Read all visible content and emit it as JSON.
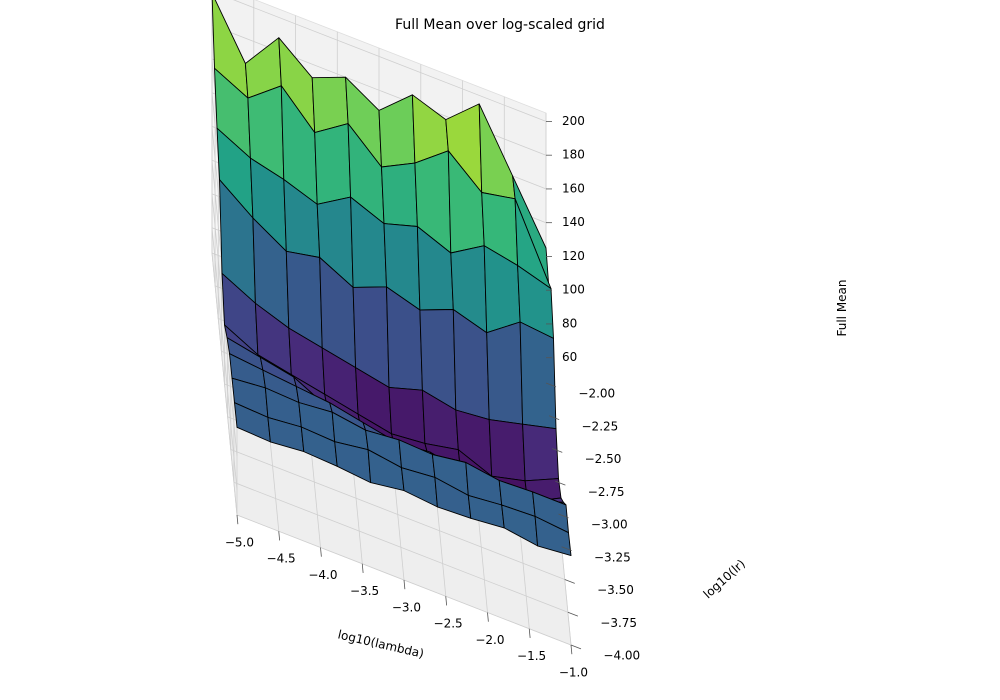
{
  "chart_data": {
    "type": "surface3d",
    "title": "Full Mean over log-scaled grid",
    "xlabel": "log10(lambda)",
    "ylabel": "log10(lr)",
    "zlabel": "Full Mean",
    "xlim": [
      -5.0,
      -1.0
    ],
    "ylim": [
      -4.0,
      -2.0
    ],
    "zlim": [
      45,
      205
    ],
    "x_ticks": [
      "−5.0",
      "−4.5",
      "−4.0",
      "−3.5",
      "−3.0",
      "−2.5",
      "−2.0",
      "−1.5",
      "−1.0"
    ],
    "y_ticks": [
      "−4.00",
      "−3.75",
      "−3.50",
      "−3.25",
      "−3.00",
      "−2.75",
      "−2.50",
      "−2.25",
      "−2.00"
    ],
    "z_ticks": [
      "60",
      "80",
      "100",
      "120",
      "140",
      "160",
      "180",
      "200"
    ],
    "colormap": "viridis",
    "grid": true,
    "x": [
      -5.0,
      -4.6,
      -4.2,
      -3.8,
      -3.4,
      -3.0,
      -2.6,
      -2.2,
      -1.8,
      -1.4,
      -1.0
    ],
    "y": [
      -4.0,
      -3.8,
      -3.6,
      -3.4,
      -3.2,
      -3.0,
      -2.8,
      -2.6,
      -2.4,
      -2.2,
      -2.0
    ],
    "z": [
      [
        97,
        96,
        98,
        97,
        95,
        98,
        96,
        97,
        99,
        96,
        98
      ],
      [
        96,
        95,
        97,
        96,
        99,
        96,
        98,
        95,
        97,
        98,
        96
      ],
      [
        95,
        97,
        96,
        98,
        95,
        97,
        96,
        99,
        96,
        97,
        97
      ],
      [
        94,
        92,
        90,
        88,
        84,
        80,
        82,
        78,
        80,
        76,
        83
      ],
      [
        88,
        84,
        80,
        70,
        66,
        64,
        66,
        62,
        65,
        60,
        70
      ],
      [
        80,
        70,
        66,
        62,
        58,
        54,
        56,
        60,
        52,
        57,
        66
      ],
      [
        95,
        85,
        78,
        74,
        70,
        66,
        72,
        68,
        70,
        75,
        80
      ],
      [
        135,
        120,
        108,
        112,
        102,
        110,
        104,
        112,
        106,
        120,
        118
      ],
      [
        150,
        140,
        135,
        128,
        140,
        132,
        138,
        130,
        142,
        138,
        132
      ],
      [
        170,
        160,
        175,
        155,
        168,
        150,
        160,
        175,
        158,
        162,
        120
      ],
      [
        199,
        165,
        188,
        172,
        180,
        168,
        185,
        178,
        195,
        160,
        125
      ]
    ]
  }
}
